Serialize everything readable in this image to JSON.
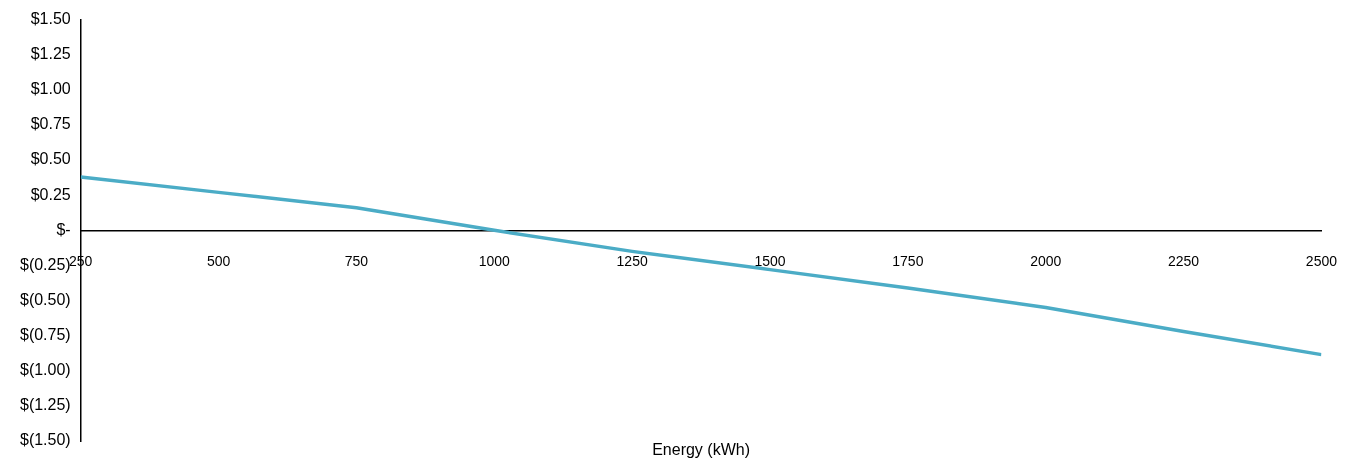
{
  "chart_data": {
    "type": "line",
    "xlabel": "Energy (kWh)",
    "x": [
      250,
      500,
      750,
      1000,
      1250,
      1500,
      1750,
      2000,
      2250,
      2500
    ],
    "series": [
      {
        "color": "#4bacc6",
        "values": [
          0.38,
          0.27,
          0.16,
          0.0,
          -0.15,
          -0.28,
          -0.41,
          -0.55,
          -0.72,
          -0.885
        ]
      }
    ],
    "xlim": [
      250,
      2500
    ],
    "xticks": [
      250,
      500,
      750,
      1000,
      1250,
      1500,
      1750,
      2000,
      2250,
      2500
    ],
    "ylim": [
      -1.5,
      1.5
    ],
    "yticks": [
      {
        "value": 1.5,
        "label": "$1.50"
      },
      {
        "value": 1.25,
        "label": "$1.25"
      },
      {
        "value": 1,
        "label": "$1.00"
      },
      {
        "value": 0.75,
        "label": "$0.75"
      },
      {
        "value": 0.5,
        "label": "$0.50"
      },
      {
        "value": 0.25,
        "label": "$0.25"
      },
      {
        "value": 0,
        "label": "$-"
      },
      {
        "value": -0.25,
        "label": "$(0.25)"
      },
      {
        "value": -0.5,
        "label": "$(0.50)"
      },
      {
        "value": -0.75,
        "label": "$(0.75)"
      },
      {
        "value": -1,
        "label": "$(1.00)"
      },
      {
        "value": -1.25,
        "label": "$(1.25)"
      },
      {
        "value": -1.5,
        "label": "$(1.50)"
      }
    ],
    "grid": false,
    "legend": false,
    "marker": "none",
    "line_style": "solid"
  }
}
